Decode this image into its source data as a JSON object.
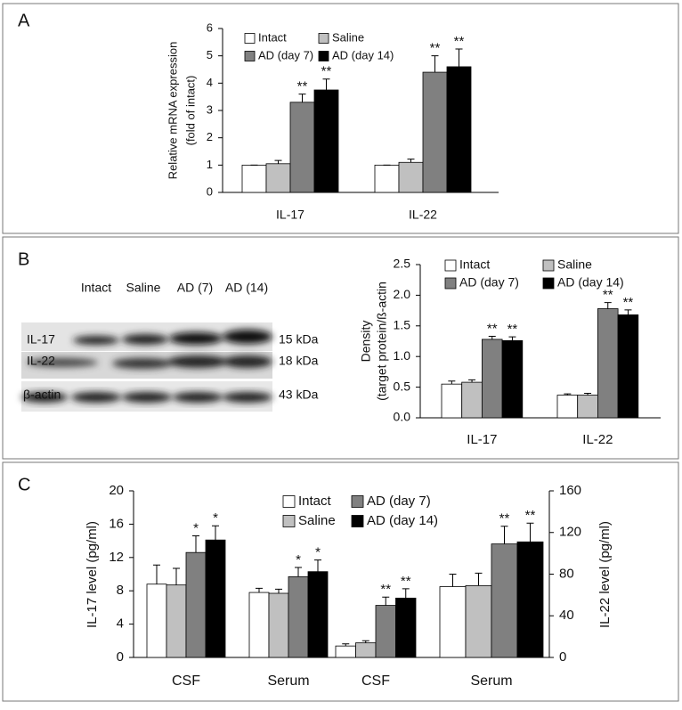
{
  "panels": [
    "A",
    "B",
    "C"
  ],
  "blot": {
    "lanes": [
      "Intact",
      "Saline",
      "AD (7)",
      "AD (14)"
    ],
    "rows": [
      {
        "label": "IL-17",
        "size": "15 kDa"
      },
      {
        "label": "IL-22",
        "size": "18 kDa"
      },
      {
        "label": "β-actin",
        "size": "43 kDa"
      }
    ]
  },
  "chart_data": [
    {
      "type": "bar",
      "ylabel": [
        "Relative mRNA expression",
        "(fold of intact)"
      ],
      "categories": [
        "IL-17",
        "IL-22"
      ],
      "ylim": [
        0,
        6
      ],
      "yticks": [
        0,
        1,
        2,
        3,
        4,
        5,
        6
      ],
      "series": [
        {
          "name": "Intact",
          "color": "#ffffff",
          "values": [
            1,
            1
          ],
          "errors": [
            0,
            0
          ]
        },
        {
          "name": "Saline",
          "color": "#c0c0c0",
          "values": [
            1.05,
            1.1
          ],
          "errors": [
            0.12,
            0.12
          ]
        },
        {
          "name": "AD (day 7)",
          "color": "#808080",
          "values": [
            3.3,
            4.4
          ],
          "errors": [
            0.3,
            0.6
          ],
          "annotations": [
            "**",
            "**"
          ]
        },
        {
          "name": "AD (day 14)",
          "color": "#000000",
          "values": [
            3.75,
            4.6
          ],
          "errors": [
            0.4,
            0.65
          ],
          "annotations": [
            "**",
            "**"
          ]
        }
      ]
    },
    {
      "type": "bar",
      "ylabel": [
        "Density",
        "(target protein/ß-actin"
      ],
      "categories": [
        "IL-17",
        "IL-22"
      ],
      "ylim": [
        0,
        2.5
      ],
      "yticks": [
        {
          "value": 0,
          "label": "0.0"
        },
        0.5,
        {
          "value": 1,
          "label": "1.0"
        },
        1.5,
        {
          "value": 2,
          "label": "2.0"
        },
        2.5
      ],
      "series": [
        {
          "name": "Intact",
          "color": "#ffffff",
          "values": [
            0.55,
            0.37
          ],
          "errors": [
            0.05,
            0.02
          ]
        },
        {
          "name": "Saline",
          "color": "#c0c0c0",
          "values": [
            0.58,
            0.37
          ],
          "errors": [
            0.04,
            0.03
          ]
        },
        {
          "name": "AD (day 7)",
          "color": "#808080",
          "values": [
            1.28,
            1.78
          ],
          "errors": [
            0.05,
            0.1
          ],
          "annotations": [
            "**",
            "**"
          ]
        },
        {
          "name": "AD (day 14)",
          "color": "#000000",
          "values": [
            1.26,
            1.68
          ],
          "errors": [
            0.06,
            0.08
          ],
          "annotations": [
            "**",
            "**"
          ]
        }
      ]
    },
    {
      "type": "bar",
      "ylabel": [
        "IL-17 level (pg/ml)"
      ],
      "categories": [
        "CSF",
        "Serum"
      ],
      "ylim": [
        0,
        20
      ],
      "yticks": [
        0,
        4,
        8,
        12,
        16,
        20
      ],
      "series": [
        {
          "name": "Intact",
          "color": "#ffffff",
          "values": [
            8.8,
            7.8
          ],
          "errors": [
            2.3,
            0.5
          ]
        },
        {
          "name": "Saline",
          "color": "#c0c0c0",
          "values": [
            8.7,
            7.7
          ],
          "errors": [
            2.0,
            0.5
          ]
        },
        {
          "name": "AD (day 7)",
          "color": "#808080",
          "values": [
            12.6,
            9.7
          ],
          "errors": [
            2.0,
            1.1
          ],
          "annotations": [
            "*",
            "*"
          ]
        },
        {
          "name": "AD (day 14)",
          "color": "#000000",
          "values": [
            14.1,
            10.3
          ],
          "errors": [
            1.7,
            1.4
          ],
          "annotations": [
            "*",
            "*"
          ]
        }
      ]
    },
    {
      "type": "bar",
      "y2label": [
        "IL-22 level (pg/ml)"
      ],
      "categories": [
        "CSF",
        "Serum"
      ],
      "y2lim": [
        0,
        160
      ],
      "y2ticks": [
        0,
        40,
        80,
        120,
        160
      ],
      "series": [
        {
          "color": "#ffffff",
          "axis": "y2",
          "values": [
            11,
            68
          ],
          "errors": [
            2,
            12
          ]
        },
        {
          "color": "#c0c0c0",
          "axis": "y2",
          "values": [
            14,
            69
          ],
          "errors": [
            2,
            12
          ]
        },
        {
          "color": "#808080",
          "axis": "y2",
          "values": [
            50,
            109
          ],
          "errors": [
            8,
            17
          ],
          "annotations": [
            "**",
            "**"
          ]
        },
        {
          "color": "#000000",
          "axis": "y2",
          "values": [
            57,
            111
          ],
          "errors": [
            9,
            18
          ],
          "annotations": [
            "**",
            "**"
          ]
        }
      ]
    }
  ]
}
